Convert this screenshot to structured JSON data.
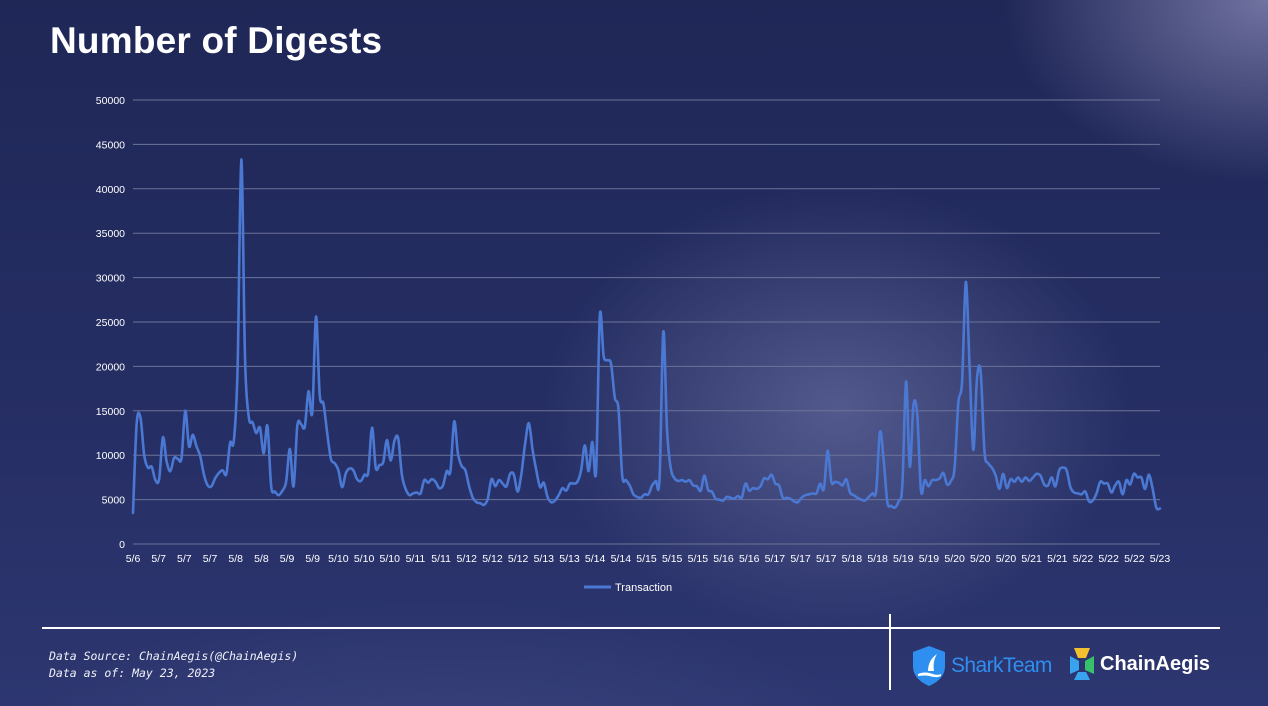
{
  "title": "Number of Digests",
  "footer": {
    "source": "Data Source: ChainAegis(@ChainAegis)",
    "as_of": "Data as of: May 23, 2023"
  },
  "logos": {
    "sharkteam": {
      "text": "SharkTeam",
      "icon": "shark-shield-icon",
      "color": "#2f8ff0"
    },
    "chainaegis": {
      "text": "ChainAegis",
      "icon": "chainaegis-pinwheel-icon",
      "colors": [
        "#f2c02e",
        "#3aa3f0",
        "#35c26b"
      ]
    }
  },
  "colors": {
    "series_line": "#4a78d2",
    "gridline": "#6e7398",
    "background": "#232b60"
  },
  "chart_data": {
    "type": "line",
    "title": "",
    "xlabel": "",
    "ylabel": "",
    "ylim": [
      0,
      50000
    ],
    "yticks": [
      0,
      5000,
      10000,
      15000,
      20000,
      25000,
      30000,
      35000,
      40000,
      45000,
      50000
    ],
    "grid": true,
    "legend": "bottom",
    "xtick_labels": [
      "5/6",
      "5/7",
      "5/7",
      "5/7",
      "5/8",
      "5/8",
      "5/9",
      "5/9",
      "5/10",
      "5/10",
      "5/10",
      "5/11",
      "5/11",
      "5/12",
      "5/12",
      "5/12",
      "5/13",
      "5/13",
      "5/14",
      "5/14",
      "5/15",
      "5/15",
      "5/15",
      "5/16",
      "5/16",
      "5/17",
      "5/17",
      "5/17",
      "5/18",
      "5/18",
      "5/19",
      "5/19",
      "5/20",
      "5/20",
      "5/20",
      "5/21",
      "5/21",
      "5/22",
      "5/22",
      "5/22",
      "5/23"
    ],
    "series": [
      {
        "name": "Transaction",
        "values": [
          3500,
          13600,
          14200,
          10000,
          8600,
          8700,
          7200,
          7300,
          12000,
          9300,
          8200,
          9700,
          9600,
          9700,
          15000,
          11000,
          12300,
          11000,
          9900,
          7800,
          6600,
          6500,
          7400,
          8000,
          8300,
          7900,
          11400,
          11600,
          19800,
          43300,
          21000,
          14300,
          13700,
          12500,
          13100,
          10200,
          13300,
          6500,
          5900,
          5500,
          6000,
          7000,
          10700,
          6500,
          13300,
          13500,
          13200,
          17200,
          14800,
          25600,
          16800,
          15800,
          12500,
          9600,
          9100,
          8300,
          6400,
          8000,
          8500,
          8300,
          7300,
          7100,
          7800,
          8100,
          13100,
          8600,
          8900,
          9200,
          11700,
          9400,
          11600,
          11900,
          7800,
          6200,
          5500,
          5700,
          5800,
          5700,
          7200,
          6900,
          7300,
          7000,
          6300,
          6600,
          8200,
          8200,
          13800,
          10200,
          8800,
          8300,
          6500,
          5200,
          4700,
          4600,
          4400,
          5100,
          7300,
          6500,
          7200,
          6800,
          6500,
          7900,
          7800,
          5900,
          7900,
          11300,
          13600,
          10600,
          8300,
          6400,
          6900,
          5300,
          4700,
          4900,
          5500,
          6300,
          6000,
          6800,
          6800,
          7000,
          8300,
          11100,
          8200,
          11500,
          8200,
          25700,
          21200,
          20700,
          20300,
          16500,
          15200,
          7700,
          7200,
          6600,
          5600,
          5300,
          5200,
          5600,
          5600,
          6600,
          7100,
          7400,
          23900,
          12900,
          8500,
          7400,
          7100,
          7200,
          7000,
          7200,
          6600,
          6500,
          6000,
          7700,
          6100,
          5900,
          5100,
          5000,
          4900,
          5300,
          5200,
          5100,
          5400,
          5200,
          6800,
          6000,
          6300,
          6200,
          6500,
          7400,
          7300,
          7800,
          6800,
          6600,
          5200,
          5200,
          5100,
          4800,
          4700,
          5200,
          5500,
          5600,
          5700,
          5700,
          6800,
          6200,
          10500,
          7000,
          7000,
          6900,
          6600,
          7300,
          5800,
          5500,
          5200,
          5000,
          4900,
          5300,
          5700,
          6000,
          12600,
          9500,
          4700,
          4300,
          4100,
          4800,
          6600,
          18300,
          8700,
          15700,
          14500,
          6000,
          7200,
          6500,
          7200,
          7200,
          7400,
          8000,
          6700,
          7100,
          8600,
          15900,
          18300,
          29500,
          20200,
          10600,
          18700,
          19300,
          10400,
          9100,
          8600,
          7700,
          6200,
          7900,
          6300,
          7300,
          7000,
          7500,
          7000,
          7500,
          7100,
          7500,
          7900,
          7700,
          6700,
          6600,
          7500,
          6500,
          8300,
          8600,
          8300,
          6400,
          5800,
          5700,
          5600,
          5900,
          4800,
          4900,
          5700,
          7000,
          6800,
          6800,
          5800,
          6600,
          7000,
          5600,
          7200,
          6700,
          7900,
          7500,
          7500,
          6200,
          7800,
          6300,
          4100,
          4000
        ]
      }
    ]
  }
}
